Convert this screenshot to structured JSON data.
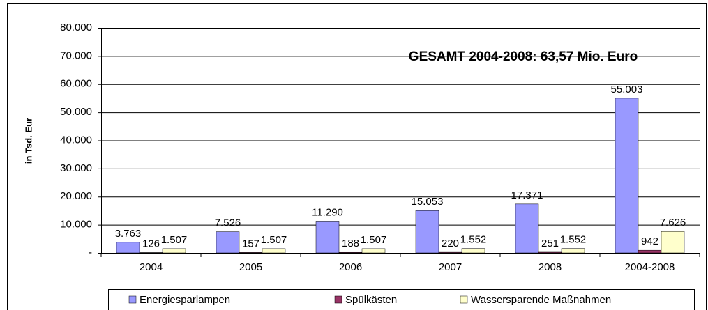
{
  "chart_data": {
    "type": "bar",
    "annotation": "GESAMT 2004-2008: 63,57 Mio. Euro",
    "y_label": "in Tsd. Eur",
    "categories": [
      "2004",
      "2005",
      "2006",
      "2007",
      "2008",
      "2004-2008"
    ],
    "series": [
      {
        "name": "Energiesparlampen",
        "color": "#9999ff",
        "values": [
          3763,
          7526,
          11290,
          15053,
          17371,
          55003
        ],
        "value_labels": [
          "3.763",
          "7.526",
          "11.290",
          "15.053",
          "17.371",
          "55.003"
        ]
      },
      {
        "name": "Spülkästen",
        "color": "#993366",
        "values": [
          126,
          157,
          188,
          220,
          251,
          942
        ]
      },
      {
        "name": "Wassersparende Maßnahmen",
        "color": "#ffffcc",
        "values": [
          1507,
          1507,
          1507,
          1552,
          1552,
          7626
        ],
        "value_labels": [
          "1.507",
          "1.507",
          "1.507",
          "1.552",
          "1.552",
          "7.626"
        ]
      }
    ],
    "ylim": [
      0,
      80000
    ],
    "yticks": [
      {
        "value": 0,
        "label": "-"
      },
      {
        "value": 10000,
        "label": "10.000"
      },
      {
        "value": 20000,
        "label": "20.000"
      },
      {
        "value": 30000,
        "label": "30.000"
      },
      {
        "value": 40000,
        "label": "40.000"
      },
      {
        "value": 50000,
        "label": "50.000"
      },
      {
        "value": 60000,
        "label": "60.000"
      },
      {
        "value": 70000,
        "label": "70.000"
      },
      {
        "value": 80000,
        "label": "80.000"
      }
    ],
    "grid": true,
    "legend": "bottom"
  }
}
